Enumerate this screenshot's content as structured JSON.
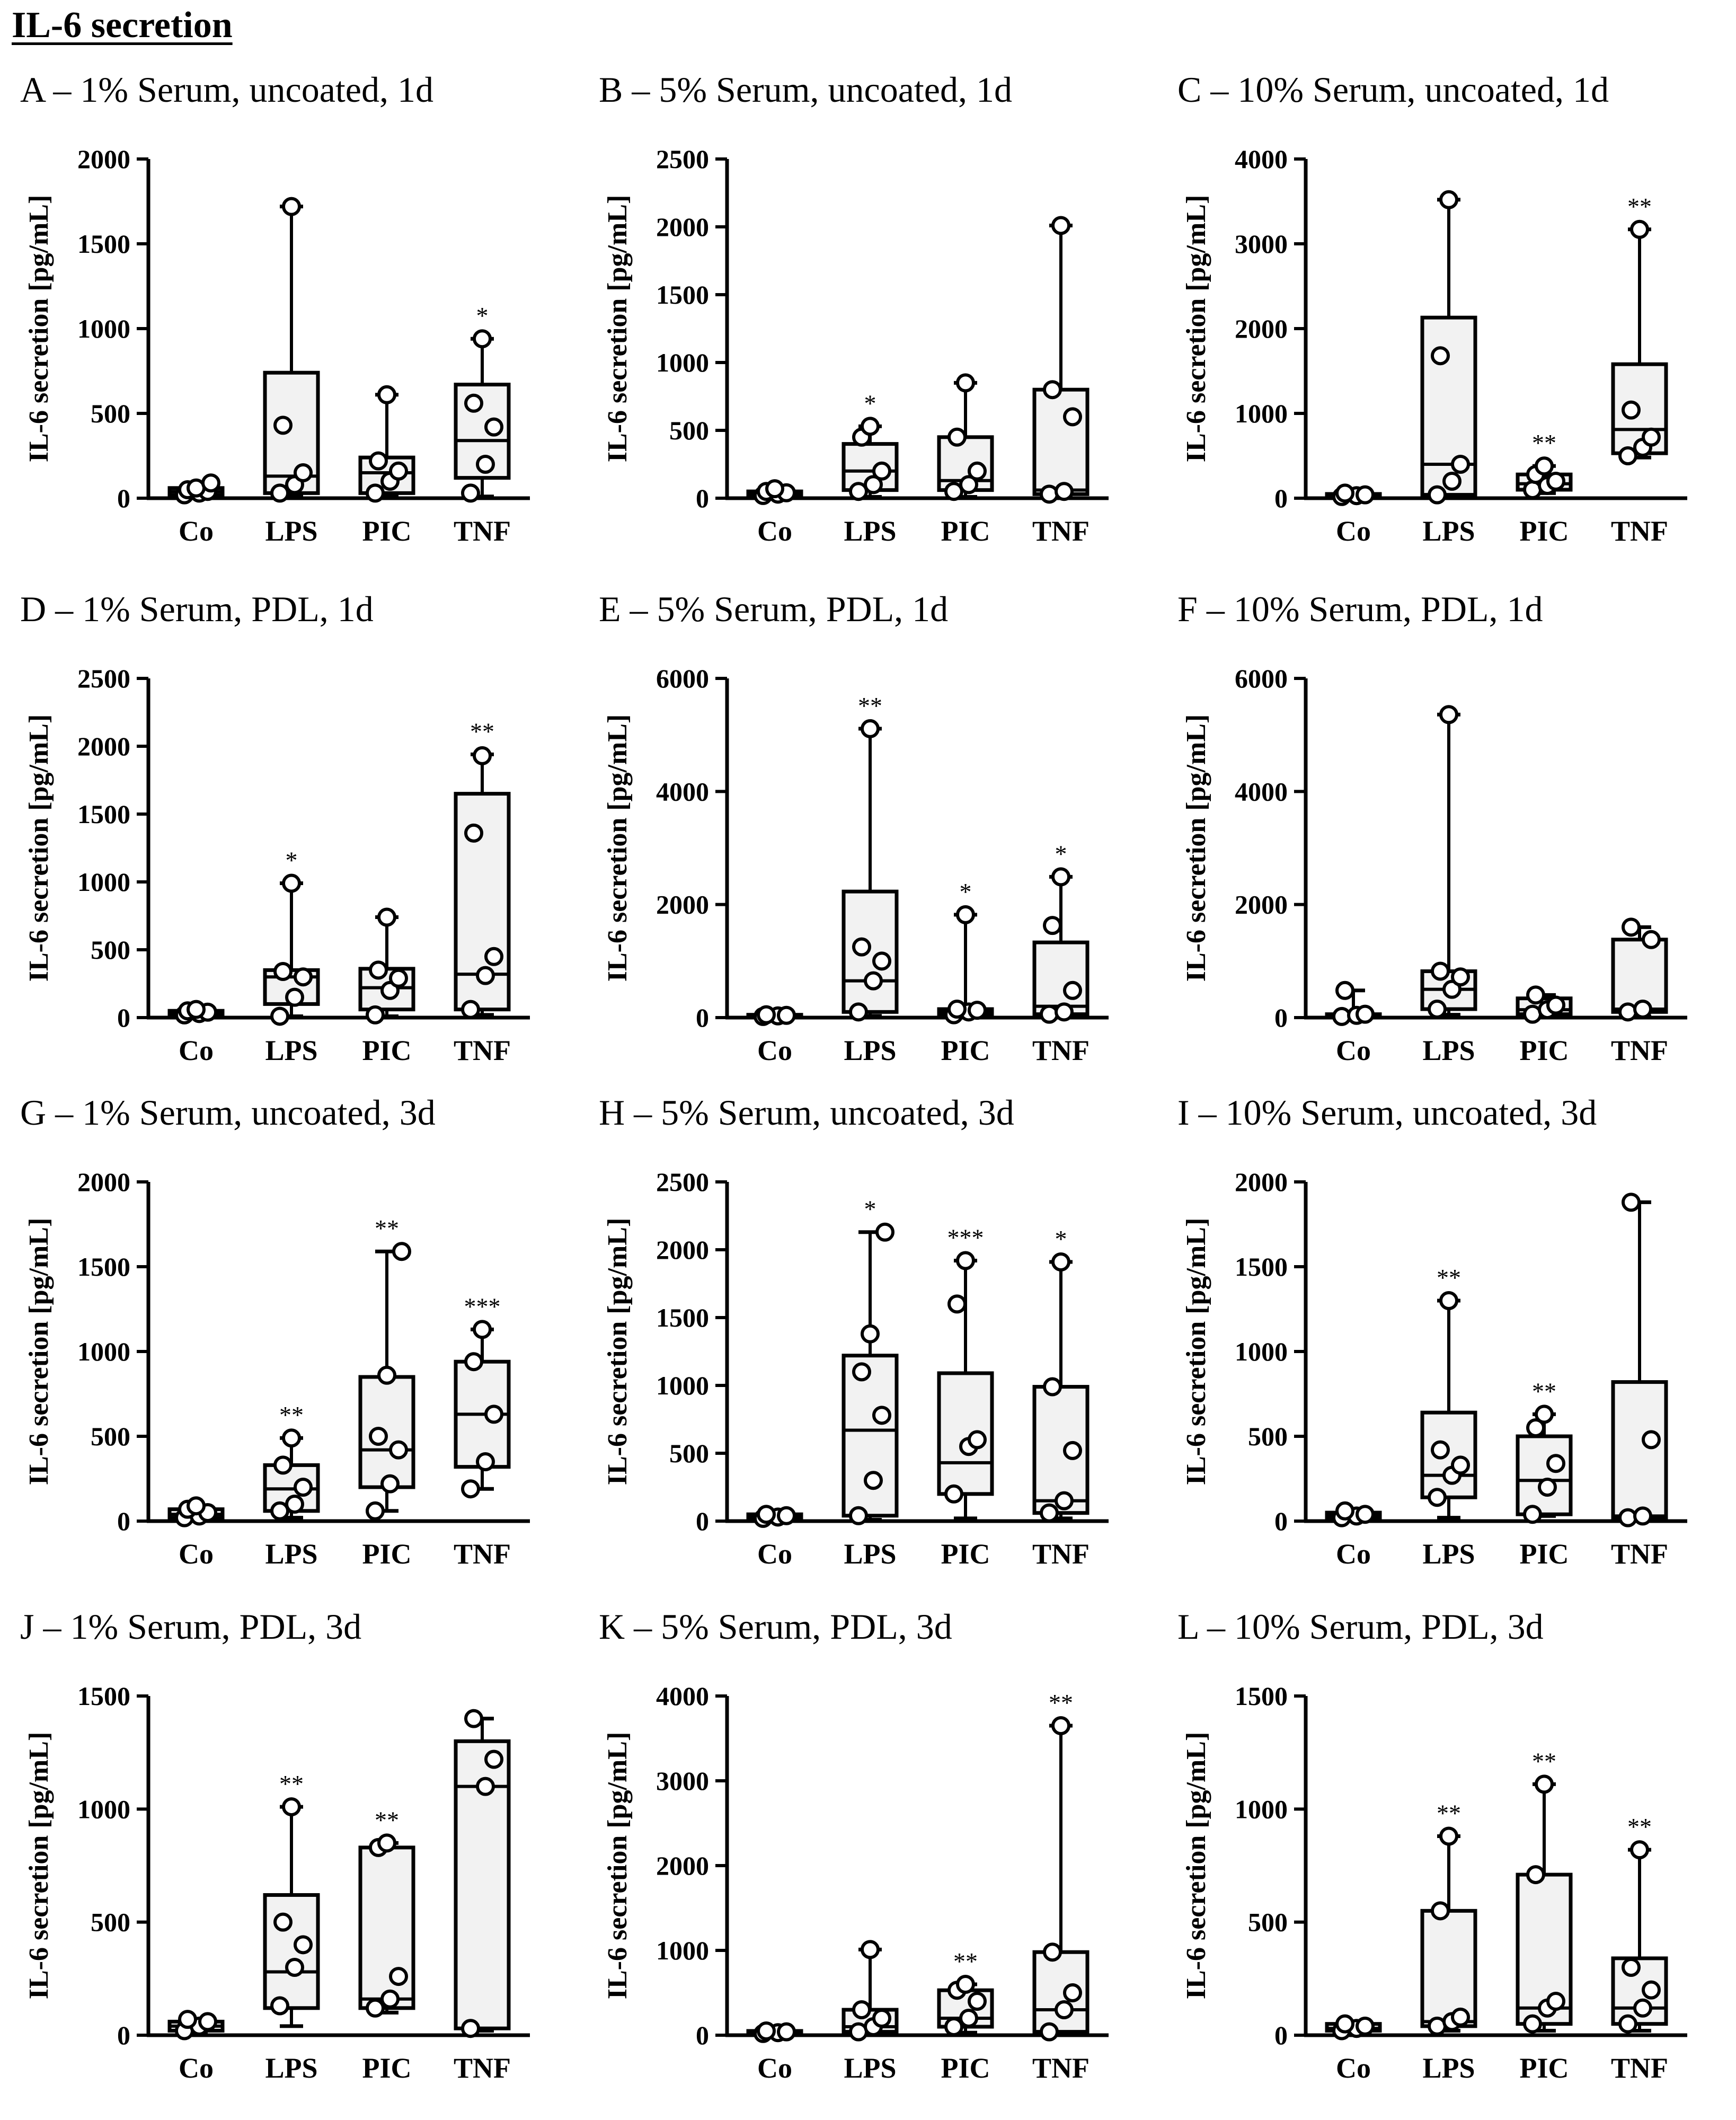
{
  "page": {
    "title": "IL-6 secretion"
  },
  "chart_data": [
    {
      "id": "A",
      "type": "box",
      "title": "A – 1% Serum, uncoated, 1d",
      "ylabel": "IL-6 secretion [pg/mL]",
      "ylim": [
        0,
        2000
      ],
      "yticks": [
        0,
        500,
        1000,
        1500,
        2000
      ],
      "categories": [
        "Co",
        "LPS",
        "PIC",
        "TNF"
      ],
      "boxes": [
        {
          "min": 10,
          "q1": 20,
          "median": 40,
          "q3": 60,
          "max": 90,
          "points": [
            20,
            30,
            40,
            50,
            60,
            90
          ],
          "sig": ""
        },
        {
          "min": 10,
          "q1": 30,
          "median": 130,
          "q3": 740,
          "max": 1720,
          "points": [
            30,
            80,
            150,
            430,
            1720
          ],
          "sig": ""
        },
        {
          "min": 20,
          "q1": 30,
          "median": 150,
          "q3": 240,
          "max": 610,
          "points": [
            30,
            100,
            160,
            220,
            610
          ],
          "sig": ""
        },
        {
          "min": 10,
          "q1": 120,
          "median": 340,
          "q3": 670,
          "max": 940,
          "points": [
            30,
            200,
            420,
            560,
            940
          ],
          "sig": "*"
        }
      ]
    },
    {
      "id": "B",
      "type": "box",
      "title": "B – 5% Serum, uncoated, 1d",
      "ylabel": "IL-6 secretion [pg/mL]",
      "ylim": [
        0,
        2500
      ],
      "yticks": [
        0,
        500,
        1000,
        1500,
        2000,
        2500
      ],
      "categories": [
        "Co",
        "LPS",
        "PIC",
        "TNF"
      ],
      "boxes": [
        {
          "min": 10,
          "q1": 20,
          "median": 30,
          "q3": 50,
          "max": 70,
          "points": [
            20,
            30,
            40,
            50,
            70
          ],
          "sig": ""
        },
        {
          "min": 10,
          "q1": 60,
          "median": 200,
          "q3": 400,
          "max": 530,
          "points": [
            50,
            100,
            200,
            450,
            530
          ],
          "sig": "*"
        },
        {
          "min": 10,
          "q1": 60,
          "median": 130,
          "q3": 450,
          "max": 850,
          "points": [
            50,
            100,
            200,
            450,
            850
          ],
          "sig": ""
        },
        {
          "min": 10,
          "q1": 30,
          "median": 60,
          "q3": 800,
          "max": 2010,
          "points": [
            30,
            50,
            600,
            800,
            2010
          ],
          "sig": ""
        }
      ]
    },
    {
      "id": "C",
      "type": "box",
      "title": "C – 10% Serum, uncoated, 1d",
      "ylabel": "IL-6 secretion [pg/mL]",
      "ylim": [
        0,
        4000
      ],
      "yticks": [
        0,
        1000,
        2000,
        3000,
        4000
      ],
      "categories": [
        "Co",
        "LPS",
        "PIC",
        "TNF"
      ],
      "boxes": [
        {
          "min": 10,
          "q1": 20,
          "median": 30,
          "q3": 50,
          "max": 60,
          "points": [
            20,
            30,
            40,
            60
          ],
          "sig": ""
        },
        {
          "min": 20,
          "q1": 40,
          "median": 400,
          "q3": 2130,
          "max": 3520,
          "points": [
            40,
            200,
            400,
            1680,
            3520
          ],
          "sig": ""
        },
        {
          "min": 60,
          "q1": 100,
          "median": 170,
          "q3": 280,
          "max": 380,
          "points": [
            100,
            150,
            200,
            280,
            380
          ],
          "sig": "**"
        },
        {
          "min": 480,
          "q1": 530,
          "median": 810,
          "q3": 1580,
          "max": 3170,
          "points": [
            500,
            600,
            720,
            1040,
            3170
          ],
          "sig": "**"
        }
      ]
    },
    {
      "id": "D",
      "type": "box",
      "title": "D – 1% Serum, PDL, 1d",
      "ylabel": "IL-6 secretion [pg/mL]",
      "ylim": [
        0,
        2500
      ],
      "yticks": [
        0,
        500,
        1000,
        1500,
        2000,
        2500
      ],
      "categories": [
        "Co",
        "LPS",
        "PIC",
        "TNF"
      ],
      "boxes": [
        {
          "min": 10,
          "q1": 20,
          "median": 30,
          "q3": 50,
          "max": 60,
          "points": [
            20,
            30,
            40,
            50,
            60
          ],
          "sig": ""
        },
        {
          "min": 10,
          "q1": 100,
          "median": 300,
          "q3": 350,
          "max": 990,
          "points": [
            10,
            150,
            300,
            340,
            990
          ],
          "sig": "*"
        },
        {
          "min": 10,
          "q1": 60,
          "median": 220,
          "q3": 360,
          "max": 740,
          "points": [
            20,
            200,
            290,
            350,
            740
          ],
          "sig": ""
        },
        {
          "min": 20,
          "q1": 60,
          "median": 320,
          "q3": 1650,
          "max": 1940,
          "points": [
            60,
            310,
            450,
            1360,
            1930
          ],
          "sig": "**"
        }
      ]
    },
    {
      "id": "E",
      "type": "box",
      "title": "E – 5% Serum, PDL, 1d",
      "ylabel": "IL-6 secretion [pg/mL]",
      "ylim": [
        0,
        6000
      ],
      "yticks": [
        0,
        2000,
        4000,
        6000
      ],
      "categories": [
        "Co",
        "LPS",
        "PIC",
        "TNF"
      ],
      "boxes": [
        {
          "min": 10,
          "q1": 20,
          "median": 30,
          "q3": 50,
          "max": 60,
          "points": [
            20,
            30,
            40,
            50
          ],
          "sig": ""
        },
        {
          "min": 30,
          "q1": 100,
          "median": 650,
          "q3": 2230,
          "max": 5110,
          "points": [
            100,
            650,
            1000,
            1250,
            5110
          ],
          "sig": "**"
        },
        {
          "min": 10,
          "q1": 50,
          "median": 100,
          "q3": 150,
          "max": 1820,
          "points": [
            50,
            100,
            130,
            150,
            1820
          ],
          "sig": "*"
        },
        {
          "min": 30,
          "q1": 60,
          "median": 200,
          "q3": 1330,
          "max": 2490,
          "points": [
            60,
            100,
            480,
            1630,
            2490
          ],
          "sig": "*"
        }
      ]
    },
    {
      "id": "F",
      "type": "box",
      "title": "F – 10% Serum, PDL, 1d",
      "ylabel": "IL-6 secretion [pg/mL]",
      "ylim": [
        0,
        6000
      ],
      "yticks": [
        0,
        2000,
        4000,
        6000
      ],
      "categories": [
        "Co",
        "LPS",
        "PIC",
        "TNF"
      ],
      "boxes": [
        {
          "min": 10,
          "q1": 20,
          "median": 40,
          "q3": 60,
          "max": 480,
          "points": [
            20,
            40,
            60,
            480
          ],
          "sig": ""
        },
        {
          "min": 50,
          "q1": 150,
          "median": 500,
          "q3": 820,
          "max": 5360,
          "points": [
            150,
            500,
            720,
            820,
            5360
          ],
          "sig": ""
        },
        {
          "min": 20,
          "q1": 60,
          "median": 140,
          "q3": 340,
          "max": 400,
          "points": [
            60,
            140,
            220,
            400
          ],
          "sig": ""
        },
        {
          "min": 20,
          "q1": 100,
          "median": 150,
          "q3": 1380,
          "max": 1600,
          "points": [
            100,
            150,
            1380,
            1600
          ],
          "sig": ""
        }
      ]
    },
    {
      "id": "G",
      "type": "box",
      "title": "G – 1% Serum, uncoated, 3d",
      "ylabel": "IL-6 secretion [pg/mL]",
      "ylim": [
        0,
        2000
      ],
      "yticks": [
        0,
        500,
        1000,
        1500,
        2000
      ],
      "categories": [
        "Co",
        "LPS",
        "PIC",
        "TNF"
      ],
      "boxes": [
        {
          "min": 10,
          "q1": 20,
          "median": 40,
          "q3": 70,
          "max": 90,
          "points": [
            20,
            30,
            50,
            70,
            90
          ],
          "sig": ""
        },
        {
          "min": 20,
          "q1": 60,
          "median": 190,
          "q3": 330,
          "max": 490,
          "points": [
            60,
            100,
            200,
            330,
            490
          ],
          "sig": "**"
        },
        {
          "min": 60,
          "q1": 200,
          "median": 420,
          "q3": 850,
          "max": 1590,
          "points": [
            60,
            220,
            420,
            500,
            860,
            1590
          ],
          "sig": "**"
        },
        {
          "min": 190,
          "q1": 320,
          "median": 630,
          "q3": 940,
          "max": 1130,
          "points": [
            190,
            350,
            630,
            940,
            1130
          ],
          "sig": "***"
        }
      ]
    },
    {
      "id": "H",
      "type": "box",
      "title": "H – 5% Serum, uncoated, 3d",
      "ylabel": "IL-6 secretion [pg/mL]",
      "ylim": [
        0,
        2500
      ],
      "yticks": [
        0,
        500,
        1000,
        1500,
        2000,
        2500
      ],
      "categories": [
        "Co",
        "LPS",
        "PIC",
        "TNF"
      ],
      "boxes": [
        {
          "min": 10,
          "q1": 20,
          "median": 30,
          "q3": 50,
          "max": 60,
          "points": [
            20,
            30,
            40,
            50
          ],
          "sig": ""
        },
        {
          "min": 10,
          "q1": 40,
          "median": 670,
          "q3": 1220,
          "max": 2130,
          "points": [
            40,
            300,
            780,
            1100,
            1380,
            2130
          ],
          "sig": "*"
        },
        {
          "min": 20,
          "q1": 200,
          "median": 430,
          "q3": 1090,
          "max": 1920,
          "points": [
            200,
            550,
            600,
            1600,
            1920
          ],
          "sig": "***"
        },
        {
          "min": 20,
          "q1": 60,
          "median": 150,
          "q3": 990,
          "max": 1910,
          "points": [
            60,
            150,
            520,
            990,
            1910
          ],
          "sig": "*"
        }
      ]
    },
    {
      "id": "I",
      "type": "box",
      "title": "I – 10% Serum, uncoated, 3d",
      "ylabel": "IL-6 secretion [pg/mL]",
      "ylim": [
        0,
        2000
      ],
      "yticks": [
        0,
        500,
        1000,
        1500,
        2000
      ],
      "categories": [
        "Co",
        "LPS",
        "PIC",
        "TNF"
      ],
      "boxes": [
        {
          "min": 10,
          "q1": 20,
          "median": 30,
          "q3": 50,
          "max": 60,
          "points": [
            20,
            30,
            40,
            60
          ],
          "sig": ""
        },
        {
          "min": 20,
          "q1": 140,
          "median": 270,
          "q3": 640,
          "max": 1300,
          "points": [
            140,
            270,
            330,
            420,
            1300
          ],
          "sig": "**"
        },
        {
          "min": 30,
          "q1": 40,
          "median": 240,
          "q3": 500,
          "max": 630,
          "points": [
            40,
            200,
            340,
            550,
            630
          ],
          "sig": "**"
        },
        {
          "min": 10,
          "q1": 20,
          "median": 30,
          "q3": 820,
          "max": 1880,
          "points": [
            20,
            30,
            480,
            1880
          ],
          "sig": ""
        }
      ]
    },
    {
      "id": "J",
      "type": "box",
      "title": "J – 1% Serum, PDL, 3d",
      "ylabel": "IL-6 secretion [pg/mL]",
      "ylim": [
        0,
        1500
      ],
      "yticks": [
        0,
        500,
        1000,
        1500
      ],
      "categories": [
        "Co",
        "LPS",
        "PIC",
        "TNF"
      ],
      "boxes": [
        {
          "min": 10,
          "q1": 20,
          "median": 40,
          "q3": 60,
          "max": 70,
          "points": [
            20,
            40,
            60,
            70
          ],
          "sig": ""
        },
        {
          "min": 40,
          "q1": 120,
          "median": 280,
          "q3": 620,
          "max": 1010,
          "points": [
            130,
            300,
            400,
            500,
            1010
          ],
          "sig": "**"
        },
        {
          "min": 100,
          "q1": 120,
          "median": 160,
          "q3": 830,
          "max": 850,
          "points": [
            120,
            160,
            260,
            830,
            850
          ],
          "sig": "**"
        },
        {
          "min": 20,
          "q1": 30,
          "median": 1100,
          "q3": 1300,
          "max": 1400,
          "points": [
            30,
            1100,
            1220,
            1400
          ],
          "sig": ""
        }
      ]
    },
    {
      "id": "K",
      "type": "box",
      "title": "K – 5% Serum, PDL, 3d",
      "ylabel": "IL-6 secretion [pg/mL]",
      "ylim": [
        0,
        4000
      ],
      "yticks": [
        0,
        1000,
        2000,
        3000,
        4000
      ],
      "categories": [
        "Co",
        "LPS",
        "PIC",
        "TNF"
      ],
      "boxes": [
        {
          "min": 10,
          "q1": 20,
          "median": 30,
          "q3": 50,
          "max": 60,
          "points": [
            20,
            30,
            40,
            50
          ],
          "sig": ""
        },
        {
          "min": 20,
          "q1": 40,
          "median": 100,
          "q3": 300,
          "max": 1010,
          "points": [
            40,
            100,
            200,
            300,
            1010
          ],
          "sig": ""
        },
        {
          "min": 30,
          "q1": 100,
          "median": 200,
          "q3": 530,
          "max": 600,
          "points": [
            100,
            200,
            400,
            530,
            600
          ],
          "sig": "**"
        },
        {
          "min": 20,
          "q1": 40,
          "median": 300,
          "q3": 980,
          "max": 3650,
          "points": [
            40,
            300,
            500,
            980,
            3650
          ],
          "sig": "**"
        }
      ]
    },
    {
      "id": "L",
      "type": "box",
      "title": "L – 10% Serum, PDL, 3d",
      "ylabel": "IL-6 secretion [pg/mL]",
      "ylim": [
        0,
        1500
      ],
      "yticks": [
        0,
        500,
        1000,
        1500
      ],
      "categories": [
        "Co",
        "LPS",
        "PIC",
        "TNF"
      ],
      "boxes": [
        {
          "min": 10,
          "q1": 20,
          "median": 30,
          "q3": 50,
          "max": 60,
          "points": [
            20,
            30,
            40,
            50
          ],
          "sig": ""
        },
        {
          "min": 20,
          "q1": 40,
          "median": 60,
          "q3": 550,
          "max": 880,
          "points": [
            40,
            60,
            80,
            550,
            880
          ],
          "sig": "**"
        },
        {
          "min": 20,
          "q1": 50,
          "median": 120,
          "q3": 710,
          "max": 1110,
          "points": [
            50,
            120,
            150,
            710,
            1110
          ],
          "sig": "**"
        },
        {
          "min": 20,
          "q1": 50,
          "median": 120,
          "q3": 340,
          "max": 820,
          "points": [
            50,
            120,
            200,
            300,
            820
          ],
          "sig": "**"
        }
      ]
    }
  ]
}
